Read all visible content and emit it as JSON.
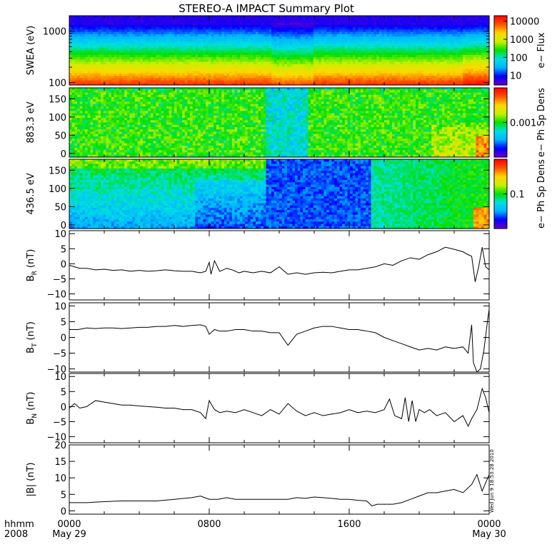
{
  "title": "STEREO-A IMPACT Summary Plot",
  "timestamp": "Wed Jun  9 18:53:28 2010",
  "time_axis": {
    "row1_label": "hhmm",
    "row2_label": "2008",
    "ticks": [
      {
        "hour": 0,
        "label": "0000",
        "date": "May 29"
      },
      {
        "hour": 8,
        "label": "0800",
        "date": ""
      },
      {
        "hour": 16,
        "label": "1600",
        "date": ""
      },
      {
        "hour": 24,
        "label": "0000",
        "date": "May 30"
      }
    ]
  },
  "colors": {
    "line": "#000000",
    "colormap": [
      "#6a00c8",
      "#0000ff",
      "#00b4ff",
      "#00e0e0",
      "#00e000",
      "#c8f000",
      "#ffd700",
      "#ff5000",
      "#ff0000"
    ]
  },
  "chart_data": [
    {
      "type": "heatmap",
      "ylabel": "SWEA (eV)",
      "yscale": "log",
      "ylim": [
        90,
        2000
      ],
      "yticks": [
        {
          "value": 100,
          "label": "100"
        },
        {
          "value": 1000,
          "label": "1000"
        }
      ],
      "colorbar": {
        "label": "e− Flux",
        "scale": "log",
        "range": [
          3,
          20000
        ],
        "ticks": [
          {
            "value": 10,
            "label": "10"
          },
          {
            "value": 100,
            "label": "100"
          },
          {
            "value": 1000,
            "label": "1000"
          },
          {
            "value": 10000,
            "label": "10000"
          }
        ]
      }
    },
    {
      "type": "heatmap",
      "ylabel": "883.3 eV",
      "ylim": [
        -10,
        180
      ],
      "yticks": [
        {
          "value": 0,
          "label": "0"
        },
        {
          "value": 50,
          "label": "50"
        },
        {
          "value": 100,
          "label": "100"
        },
        {
          "value": 150,
          "label": "150"
        }
      ],
      "colorbar": {
        "label": "e− Ph Sp Dens",
        "scale": "log",
        "range": [
          0.0001,
          0.01
        ],
        "ticks": [
          {
            "value": 0.001,
            "label": "0.001"
          }
        ]
      }
    },
    {
      "type": "heatmap",
      "ylabel": "436.5 eV",
      "ylim": [
        -10,
        180
      ],
      "yticks": [
        {
          "value": 0,
          "label": "0"
        },
        {
          "value": 50,
          "label": "50"
        },
        {
          "value": 100,
          "label": "100"
        },
        {
          "value": 150,
          "label": "150"
        }
      ],
      "colorbar": {
        "label": "e− Ph Sp Dens",
        "scale": "log",
        "range": [
          0.01,
          1
        ],
        "ticks": [
          {
            "value": 0.1,
            "label": "0.1"
          }
        ]
      }
    },
    {
      "type": "line",
      "ylabel": "B",
      "ylabel_sub": "R",
      "ylabel_unit": "(nT)",
      "ylim": [
        -12,
        11
      ],
      "yticks": [
        {
          "value": -10,
          "label": "−10"
        },
        {
          "value": -5,
          "label": "−5"
        },
        {
          "value": 0,
          "label": "0"
        },
        {
          "value": 5,
          "label": "5"
        },
        {
          "value": 10,
          "label": "10"
        }
      ],
      "x": [
        0,
        0.3,
        0.6,
        1,
        1.5,
        2,
        2.5,
        3,
        3.5,
        4,
        4.5,
        5,
        5.5,
        6,
        6.5,
        7,
        7.5,
        7.8,
        8,
        8.1,
        8.3,
        8.6,
        9,
        9.3,
        9.7,
        10,
        10.5,
        11,
        11.5,
        12,
        12.2,
        12.5,
        13,
        13.5,
        14,
        14.5,
        15,
        15.5,
        16,
        16.5,
        17,
        17.5,
        18,
        18.5,
        19,
        19.5,
        20,
        20.5,
        21,
        21.5,
        22,
        22.5,
        22.8,
        23,
        23.2,
        23.4,
        23.6,
        23.8,
        24
      ],
      "y": [
        -0.5,
        -1,
        -1.5,
        -1.5,
        -2,
        -1.8,
        -2.2,
        -2,
        -2.5,
        -2.2,
        -2.5,
        -2.3,
        -2,
        -2.3,
        -2.5,
        -2.5,
        -3,
        -2.5,
        0.5,
        -3.5,
        1,
        -2.5,
        -1.5,
        -2,
        -3,
        -2.5,
        -3,
        -2.5,
        -3,
        -1,
        -2,
        -3.5,
        -3,
        -3.5,
        -3,
        -2.8,
        -3,
        -2.5,
        -2,
        -2,
        -1.5,
        -1,
        0,
        -0.5,
        1,
        2,
        1.5,
        3,
        4,
        5.5,
        4.8,
        4,
        3,
        2.5,
        -6,
        -1,
        5.5,
        -1,
        -2
      ]
    },
    {
      "type": "line",
      "ylabel": "B",
      "ylabel_sub": "T",
      "ylabel_unit": "(nT)",
      "ylim": [
        -11,
        11
      ],
      "yticks": [
        {
          "value": -10,
          "label": "−10"
        },
        {
          "value": -5,
          "label": "−5"
        },
        {
          "value": 0,
          "label": "0"
        },
        {
          "value": 5,
          "label": "5"
        },
        {
          "value": 10,
          "label": "10"
        }
      ],
      "x": [
        0,
        0.5,
        1,
        1.5,
        2,
        2.5,
        3,
        3.5,
        4,
        4.5,
        5,
        5.5,
        6,
        6.5,
        7,
        7.5,
        7.8,
        8,
        8.3,
        8.6,
        9,
        9.5,
        10,
        10.5,
        11,
        11.5,
        12,
        12.5,
        13,
        13.5,
        14,
        14.5,
        15,
        15.5,
        16,
        16.5,
        17,
        17.5,
        18,
        18.5,
        19,
        19.5,
        20,
        20.5,
        21,
        21.5,
        22,
        22.5,
        22.8,
        23,
        23.1,
        23.3,
        23.5,
        23.7,
        23.9,
        24
      ],
      "y": [
        2.5,
        2.5,
        3,
        2.8,
        3,
        3,
        2.8,
        3,
        3.2,
        3.2,
        3.5,
        3.5,
        3.8,
        3.5,
        3.8,
        4,
        3.5,
        1,
        2.5,
        2,
        2,
        2.5,
        2.5,
        2,
        2,
        1.5,
        1.5,
        -2.5,
        1,
        2,
        3,
        3.5,
        3.5,
        3,
        2.5,
        2.5,
        2,
        1.5,
        0,
        -1,
        -2,
        -3,
        -4,
        -3.5,
        -4,
        -3,
        -3.5,
        -3,
        -5,
        4,
        -8,
        -11,
        -10,
        -4,
        5,
        9
      ]
    },
    {
      "type": "line",
      "ylabel": "B",
      "ylabel_sub": "N",
      "ylabel_unit": "(nT)",
      "ylim": [
        -12,
        11
      ],
      "yticks": [
        {
          "value": -10,
          "label": "−10"
        },
        {
          "value": -5,
          "label": "−5"
        },
        {
          "value": 0,
          "label": "0"
        },
        {
          "value": 5,
          "label": "5"
        },
        {
          "value": 10,
          "label": "10"
        }
      ],
      "x": [
        0,
        0.3,
        0.6,
        1,
        1.5,
        2,
        2.5,
        3,
        3.5,
        4,
        4.5,
        5,
        5.5,
        6,
        6.5,
        7,
        7.5,
        7.8,
        8,
        8.3,
        8.6,
        9,
        9.5,
        10,
        10.5,
        11,
        11.5,
        12,
        12.5,
        13,
        13.5,
        14,
        14.5,
        15,
        15.5,
        16,
        16.5,
        17,
        17.5,
        18,
        18.3,
        18.6,
        19,
        19.2,
        19.4,
        19.6,
        19.8,
        20,
        20.3,
        20.6,
        21,
        21.5,
        22,
        22.5,
        22.8,
        23,
        23.3,
        23.6,
        23.8,
        24
      ],
      "y": [
        -0.5,
        1,
        -0.5,
        0,
        2,
        1.5,
        1,
        0.5,
        0.5,
        0.2,
        0,
        -0.2,
        -0.5,
        -0.5,
        -1,
        -1,
        -2,
        -4,
        2,
        -1,
        -2,
        -1.5,
        -2,
        -1,
        -2,
        -3,
        -1,
        -2.5,
        1,
        -1.5,
        -3,
        -2,
        -3,
        -2.5,
        -2,
        -1,
        -2,
        -1.5,
        -2,
        -1,
        2.5,
        -3,
        -4,
        3,
        -5,
        2,
        -5,
        -1,
        -2,
        -1,
        -3,
        -2,
        -5,
        -3,
        -6.5,
        -4,
        -1,
        6,
        3,
        -2
      ]
    },
    {
      "type": "line",
      "ylabel": "|B|",
      "ylabel_unit": "(nT)",
      "ylim": [
        -1,
        20
      ],
      "yticks": [
        {
          "value": 0,
          "label": "0"
        },
        {
          "value": 5,
          "label": "5"
        },
        {
          "value": 10,
          "label": "10"
        },
        {
          "value": 15,
          "label": "15"
        },
        {
          "value": 20,
          "label": "20"
        }
      ],
      "x": [
        0,
        1,
        2,
        3,
        4,
        5,
        6,
        7,
        7.5,
        8,
        8.5,
        9,
        9.5,
        10,
        11,
        12,
        12.5,
        13,
        13.5,
        14,
        14.5,
        15,
        15.5,
        16,
        16.5,
        17,
        17.3,
        17.6,
        18,
        18.5,
        19,
        19.5,
        20,
        20.5,
        21,
        21.5,
        22,
        22.5,
        23,
        23.3,
        23.6,
        24
      ],
      "y": [
        2.5,
        2.5,
        2.8,
        3,
        3,
        3,
        3.5,
        4,
        4.5,
        3.5,
        3.5,
        4,
        3.5,
        3.5,
        3.5,
        3.5,
        3.5,
        4,
        3.8,
        4.2,
        4,
        3.8,
        3.5,
        3.5,
        3.2,
        3,
        1.5,
        2,
        2,
        2,
        2.5,
        3.5,
        4.5,
        5.5,
        5.5,
        6,
        6.5,
        5.5,
        8,
        11,
        6,
        11
      ]
    }
  ]
}
